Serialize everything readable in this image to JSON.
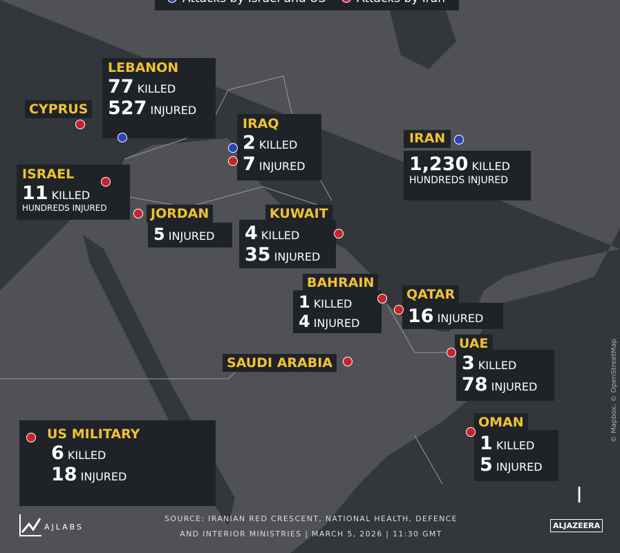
{
  "legend": {
    "items": [
      {
        "label": "Attacks by Israel and US",
        "color": "#2846b8"
      },
      {
        "label": "Attacks by Iran",
        "color": "#c8232b"
      }
    ]
  },
  "countries": {
    "lebanon": {
      "name": "LEBANON",
      "killed_num": "77",
      "killed": "KILLED",
      "injured_num": "527",
      "injured": "INJURED",
      "marker": "blue"
    },
    "cyprus": {
      "name": "CYPRUS",
      "marker": "red"
    },
    "iraq": {
      "name": "IRAQ",
      "killed_num": "2",
      "killed": "KILLED",
      "injured_num": "7",
      "injured": "INJURED",
      "markers": [
        "blue",
        "red"
      ]
    },
    "iran": {
      "name": "IRAN",
      "killed_num": "1,230",
      "killed": "KILLED",
      "injured": "HUNDREDS INJURED",
      "marker": "blue"
    },
    "israel": {
      "name": "ISRAEL",
      "killed_num": "11",
      "killed": "KILLED",
      "injured": "HUNDREDS INJURED",
      "marker": "red"
    },
    "jordan": {
      "name": "JORDAN",
      "injured_num": "5",
      "injured": "INJURED",
      "marker": "red"
    },
    "kuwait": {
      "name": "KUWAIT",
      "killed_num": "4",
      "killed": "KILLED",
      "injured_num": "35",
      "injured": "INJURED",
      "marker": "red"
    },
    "bahrain": {
      "name": "BAHRAIN",
      "killed_num": "1",
      "killed": "KILLED",
      "injured_num": "4",
      "injured": "INJURED",
      "marker": "red"
    },
    "qatar": {
      "name": "QATAR",
      "injured_num": "16",
      "injured": "INJURED",
      "marker": "red"
    },
    "saudi": {
      "name": "SAUDI ARABIA",
      "marker": "red"
    },
    "uae": {
      "name": "UAE",
      "killed_num": "3",
      "killed": "KILLED",
      "injured_num": "78",
      "injured": "INJURED",
      "marker": "red"
    },
    "oman": {
      "name": "OMAN",
      "killed_num": "1",
      "killed": "KILLED",
      "injured_num": "5",
      "injured": "INJURED",
      "marker": "red"
    },
    "us": {
      "name": "US MILITARY",
      "killed_num": "6",
      "killed": "KILLED",
      "injured_num": "18",
      "injured": "INJURED",
      "marker": "red"
    }
  },
  "footer": {
    "source_line1": "SOURCE:  IRANIAN RED CRESCENT, NATIONAL HEALTH, DEFENCE",
    "source_line2": "AND INTERIOR MINISTRIES   |  MARCH 5, 2026  |  11:30 GMT",
    "ajlabs": "AJLABS",
    "aljazeera": "ALJAZEERA",
    "map_credit": "© Mapbox, © OpenStreetMap"
  }
}
